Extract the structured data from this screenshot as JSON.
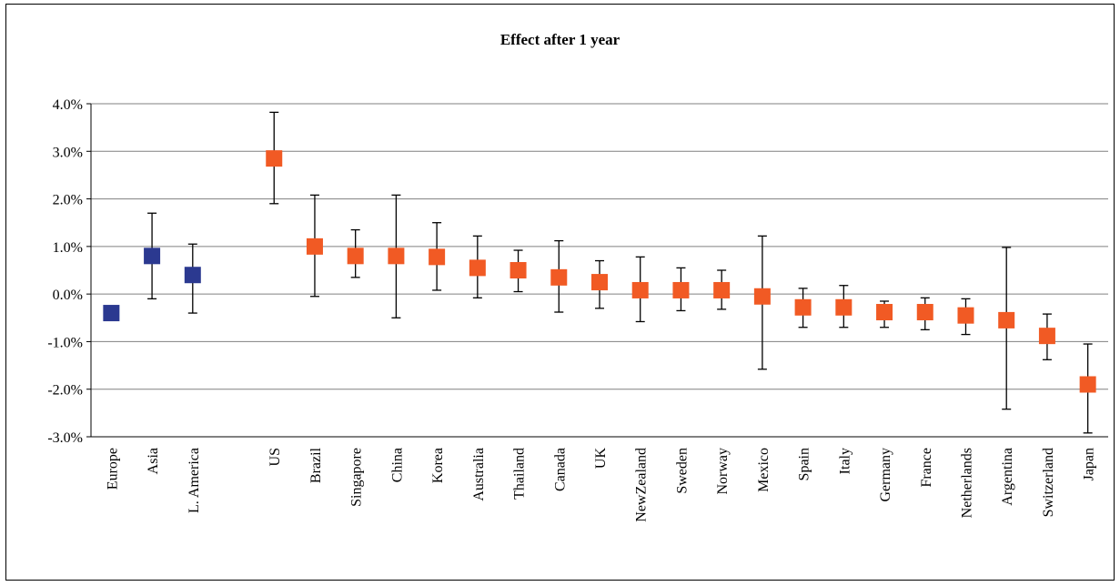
{
  "chart_data": {
    "type": "scatter",
    "title": "Effect after 1 year",
    "xlabel": "",
    "ylabel": "",
    "ylim": [
      -3.0,
      4.0
    ],
    "yticks": [
      -3.0,
      -2.0,
      -1.0,
      0.0,
      1.0,
      2.0,
      3.0,
      4.0
    ],
    "ytick_labels": [
      "-3.0%",
      "-2.0%",
      "-1.0%",
      "0.0%",
      "1.0%",
      "2.0%",
      "3.0%",
      "4.0%"
    ],
    "grid": true,
    "legend": "none",
    "colors": {
      "region": "#2b3990",
      "country": "#f15a24",
      "grid": "#808080",
      "errorbar": "#000000"
    },
    "categories": [
      "Europe",
      "Asia",
      "L. America",
      "",
      "US",
      "Brazil",
      "Singapore",
      "China",
      "Korea",
      "Australia",
      "Thailand",
      "Canada",
      "UK",
      "NewZealand",
      "Sweden",
      "Norway",
      "Mexico",
      "Spain",
      "Italy",
      "Germany",
      "France",
      "Netherlands",
      "Argentina",
      "Switzerland",
      "Japan"
    ],
    "series": [
      {
        "group": "region",
        "x": [
          "Europe",
          "Asia",
          "L. America"
        ],
        "values": [
          -0.4,
          0.8,
          0.4
        ],
        "lower": [
          -0.4,
          -0.1,
          -0.4
        ],
        "upper": [
          -0.4,
          1.7,
          1.05
        ]
      },
      {
        "group": "country",
        "x": [
          "US",
          "Brazil",
          "Singapore",
          "China",
          "Korea",
          "Australia",
          "Thailand",
          "Canada",
          "UK",
          "NewZealand",
          "Sweden",
          "Norway",
          "Mexico",
          "Spain",
          "Italy",
          "Germany",
          "France",
          "Netherlands",
          "Argentina",
          "Switzerland",
          "Japan"
        ],
        "values": [
          2.85,
          1.0,
          0.8,
          0.8,
          0.78,
          0.55,
          0.5,
          0.35,
          0.25,
          0.08,
          0.08,
          0.08,
          -0.05,
          -0.28,
          -0.28,
          -0.38,
          -0.38,
          -0.45,
          -0.55,
          -0.88,
          -1.9
        ],
        "lower": [
          1.9,
          -0.05,
          0.35,
          -0.5,
          0.08,
          -0.08,
          0.05,
          -0.38,
          -0.3,
          -0.58,
          -0.35,
          -0.32,
          -1.58,
          -0.7,
          -0.7,
          -0.7,
          -0.75,
          -0.85,
          -2.42,
          -1.38,
          -2.92
        ],
        "upper": [
          3.82,
          2.08,
          1.35,
          2.08,
          1.5,
          1.22,
          0.92,
          1.12,
          0.7,
          0.78,
          0.55,
          0.5,
          1.22,
          0.12,
          0.18,
          -0.15,
          -0.08,
          -0.1,
          0.98,
          -0.42,
          -1.05
        ]
      }
    ]
  }
}
